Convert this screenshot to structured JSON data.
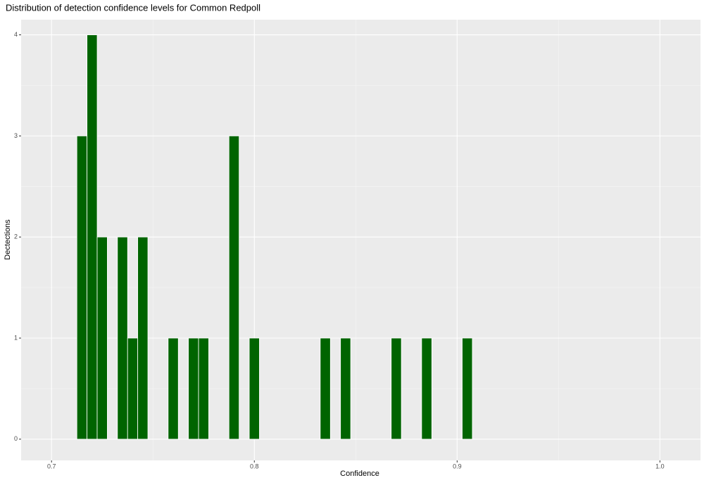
{
  "chart_data": {
    "type": "histogram",
    "title": "Distribution of detection confidence levels for Common Redpoll",
    "x_label": "Confidence",
    "y_label": "Dectections",
    "bins": [
      0.7125,
      0.7175,
      0.7225,
      0.7275,
      0.7325,
      0.7375,
      0.7425,
      0.7475,
      0.7525,
      0.7575,
      0.7625,
      0.7675,
      0.7725,
      0.7775,
      0.7825,
      0.7875,
      0.7925,
      0.7975,
      0.8025,
      0.8075,
      0.8125,
      0.8175,
      0.8225,
      0.8275,
      0.8325,
      0.8375,
      0.8425,
      0.8475,
      0.8525,
      0.8575,
      0.8625,
      0.8675,
      0.8725,
      0.8775,
      0.8825,
      0.8875,
      0.8925,
      0.8975,
      0.9025,
      0.9075
    ],
    "counts": [
      3,
      4,
      2,
      0,
      2,
      1,
      2,
      0,
      0,
      1,
      0,
      1,
      1,
      0,
      0,
      3,
      0,
      1,
      0,
      0,
      0,
      0,
      0,
      0,
      1,
      0,
      1,
      0,
      0,
      0,
      0,
      1,
      0,
      0,
      1,
      0,
      0,
      0,
      1
    ],
    "color": "#006400",
    "xlim": [
      0.685,
      1.02
    ],
    "xticks": [
      0.7,
      0.8,
      0.9,
      {
        "value": 1,
        "label": "1.0"
      }
    ],
    "ylim": [
      -0.21,
      4.15
    ],
    "yticks": [
      0,
      1,
      2,
      3,
      4
    ],
    "grid": true
  }
}
